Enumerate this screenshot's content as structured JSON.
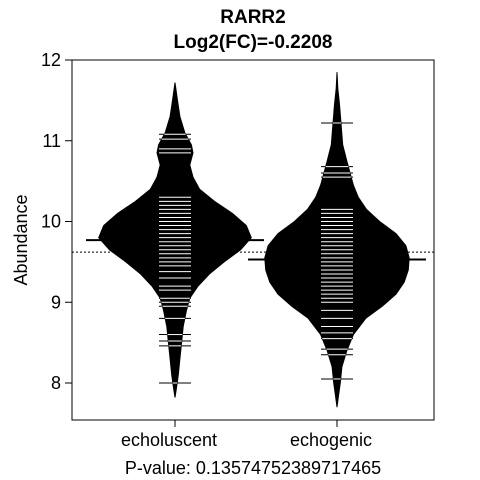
{
  "chart_data": {
    "type": "beanplot",
    "title": "RARR2",
    "subtitle": "Log2(FC)=-0.2208",
    "ylabel": "Abundance",
    "xlabel": "P-value: 0.13574752389717465",
    "ylim": [
      7.55,
      12.0
    ],
    "yticks": [
      8,
      9,
      10,
      11,
      12
    ],
    "categories": [
      "echoluscent",
      "echogenic"
    ],
    "overall_mean": 9.62,
    "groups": [
      {
        "name": "echoluscent",
        "mean": 9.77,
        "density": [
          [
            7.82,
            0.0
          ],
          [
            7.95,
            0.02
          ],
          [
            8.1,
            0.04
          ],
          [
            8.3,
            0.06
          ],
          [
            8.5,
            0.08
          ],
          [
            8.7,
            0.1
          ],
          [
            8.9,
            0.14
          ],
          [
            9.05,
            0.18
          ],
          [
            9.2,
            0.28
          ],
          [
            9.35,
            0.42
          ],
          [
            9.5,
            0.6
          ],
          [
            9.65,
            0.8
          ],
          [
            9.8,
            0.93
          ],
          [
            9.95,
            0.87
          ],
          [
            10.1,
            0.7
          ],
          [
            10.25,
            0.48
          ],
          [
            10.4,
            0.3
          ],
          [
            10.55,
            0.22
          ],
          [
            10.7,
            0.18
          ],
          [
            10.85,
            0.22
          ],
          [
            10.95,
            0.2
          ],
          [
            11.1,
            0.12
          ],
          [
            11.3,
            0.06
          ],
          [
            11.5,
            0.03
          ],
          [
            11.72,
            0.0
          ]
        ],
        "points": [
          8.0,
          8.46,
          8.52,
          8.6,
          8.8,
          8.95,
          9.0,
          9.05,
          9.15,
          9.2,
          9.3,
          9.38,
          9.45,
          9.5,
          9.55,
          9.6,
          9.65,
          9.7,
          9.75,
          9.8,
          9.85,
          9.9,
          9.95,
          10.0,
          10.05,
          10.1,
          10.15,
          10.2,
          10.25,
          10.3,
          10.85,
          10.9,
          11.02,
          11.08
        ]
      },
      {
        "name": "echogenic",
        "mean": 9.53,
        "density": [
          [
            7.7,
            0.0
          ],
          [
            7.85,
            0.02
          ],
          [
            8.0,
            0.04
          ],
          [
            8.2,
            0.06
          ],
          [
            8.4,
            0.12
          ],
          [
            8.6,
            0.2
          ],
          [
            8.8,
            0.35
          ],
          [
            8.95,
            0.55
          ],
          [
            9.1,
            0.72
          ],
          [
            9.25,
            0.82
          ],
          [
            9.4,
            0.87
          ],
          [
            9.55,
            0.88
          ],
          [
            9.7,
            0.84
          ],
          [
            9.85,
            0.72
          ],
          [
            10.0,
            0.52
          ],
          [
            10.15,
            0.36
          ],
          [
            10.3,
            0.26
          ],
          [
            10.45,
            0.2
          ],
          [
            10.6,
            0.16
          ],
          [
            10.75,
            0.12
          ],
          [
            10.95,
            0.07
          ],
          [
            11.2,
            0.05
          ],
          [
            11.45,
            0.03
          ],
          [
            11.65,
            0.01
          ],
          [
            11.85,
            0.0
          ]
        ],
        "points": [
          8.05,
          8.35,
          8.42,
          8.55,
          8.62,
          8.7,
          8.8,
          8.9,
          9.0,
          9.05,
          9.1,
          9.15,
          9.2,
          9.25,
          9.3,
          9.35,
          9.4,
          9.45,
          9.5,
          9.55,
          9.6,
          9.65,
          9.7,
          9.75,
          9.8,
          9.85,
          9.9,
          9.95,
          10.0,
          10.05,
          10.1,
          10.15,
          10.55,
          10.6,
          10.68,
          11.22
        ]
      }
    ]
  }
}
